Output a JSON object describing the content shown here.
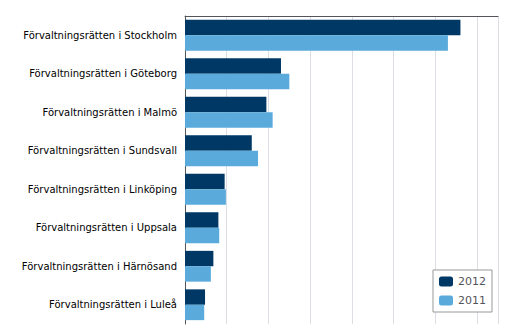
{
  "chart_data": {
    "type": "bar",
    "orientation": "horizontal",
    "categories": [
      "Förvaltningsrätten i Stockholm",
      "Förvaltningsrätten i Göteborg",
      "Förvaltningsrätten i Malmö",
      "Förvaltningsrätten i Sundsvall",
      "Förvaltningsrätten i Linköping",
      "Förvaltningsrätten i Uppsala",
      "Förvaltningsrätten i Härnösand",
      "Förvaltningsrätten i Luleå"
    ],
    "series": [
      {
        "name": "2012",
        "color": "#003865",
        "values": [
          66000,
          23000,
          19500,
          16000,
          9500,
          8000,
          6800,
          4800
        ]
      },
      {
        "name": "2011",
        "color": "#5aabdc",
        "values": [
          63000,
          25000,
          21000,
          17500,
          9800,
          8200,
          6200,
          4600
        ]
      }
    ],
    "xlim": [
      0,
      75000
    ],
    "xticks": [
      0,
      10000,
      20000,
      30000,
      40000,
      50000,
      60000,
      70000
    ],
    "grid": true,
    "legend": "lower right",
    "tick_labels": "y"
  }
}
